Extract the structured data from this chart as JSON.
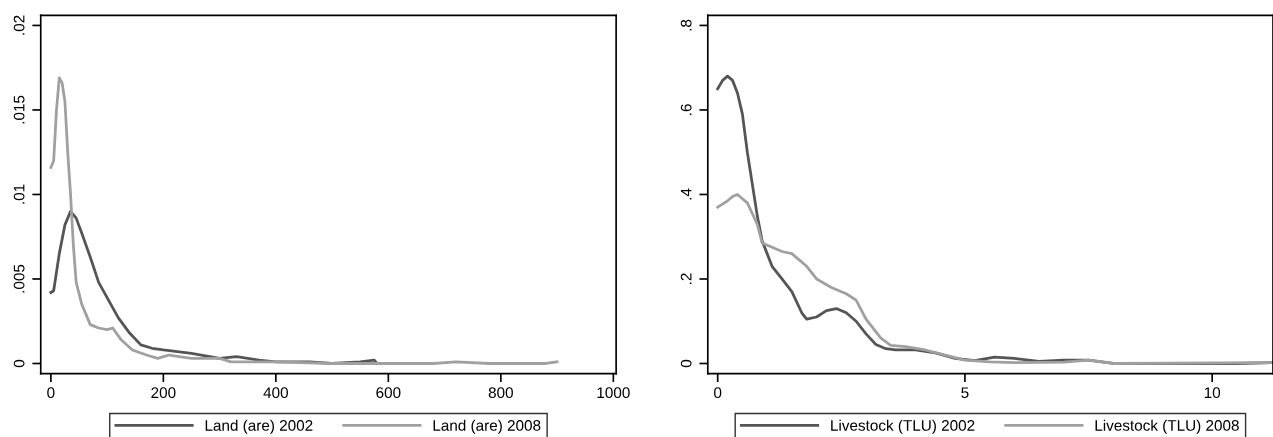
{
  "chart_data": [
    {
      "type": "line",
      "legend": "bottom",
      "grid": false,
      "xlim": [
        -18,
        1005
      ],
      "ylim": [
        -0.0006,
        0.0206
      ],
      "xticks": [
        0,
        200,
        400,
        600,
        800,
        1000
      ],
      "yticks": [
        {
          "value": 0,
          "label": "0"
        },
        {
          "value": 0.005,
          "label": ".005"
        },
        {
          "value": 0.01,
          "label": ".01"
        },
        {
          "value": 0.015,
          "label": ".015"
        },
        {
          "value": 0.02,
          "label": ".02"
        }
      ],
      "series": [
        {
          "name": "Land (are) 2002",
          "color": "#555555",
          "x": [
            0,
            5,
            15,
            25,
            35,
            45,
            55,
            70,
            85,
            100,
            120,
            140,
            160,
            180,
            200,
            250,
            300,
            330,
            370,
            400,
            460,
            500,
            550,
            575,
            580
          ],
          "values": [
            0.0042,
            0.0043,
            0.0065,
            0.0082,
            0.009,
            0.0086,
            0.0077,
            0.0063,
            0.0048,
            0.0039,
            0.0027,
            0.0018,
            0.0011,
            0.0009,
            0.0008,
            0.0006,
            0.0003,
            0.0004,
            0.0002,
            0.0001,
            0.0001,
            0.0,
            0.0001,
            0.0002,
            0.0
          ]
        },
        {
          "name": "Land (are) 2008",
          "color": "#a0a0a0",
          "x": [
            0,
            5,
            10,
            15,
            20,
            25,
            30,
            35,
            40,
            45,
            55,
            70,
            85,
            100,
            110,
            125,
            145,
            170,
            190,
            210,
            250,
            300,
            320,
            400,
            500,
            680,
            720,
            780,
            880,
            900
          ],
          "values": [
            0.0116,
            0.012,
            0.015,
            0.0169,
            0.0166,
            0.0155,
            0.0125,
            0.01,
            0.007,
            0.0048,
            0.0035,
            0.0023,
            0.0021,
            0.002,
            0.0021,
            0.0014,
            0.0008,
            0.0005,
            0.0003,
            0.0005,
            0.0003,
            0.0003,
            0.0001,
            0.0001,
            0.0,
            0.0,
            0.0001,
            0.0,
            0.0,
            0.0001
          ]
        }
      ]
    },
    {
      "type": "line",
      "legend": "bottom",
      "grid": false,
      "xlim": [
        -0.2,
        11.23
      ],
      "ylim": [
        -0.024,
        0.824
      ],
      "xticks": [
        0,
        5,
        10
      ],
      "yticks": [
        {
          "value": 0,
          "label": "0"
        },
        {
          "value": 0.2,
          "label": ".2"
        },
        {
          "value": 0.4,
          "label": ".4"
        },
        {
          "value": 0.6,
          "label": ".6"
        },
        {
          "value": 0.8,
          "label": ".8"
        }
      ],
      "series": [
        {
          "name": "Livestock (TLU) 2002",
          "color": "#555555",
          "x": [
            0,
            0.1,
            0.2,
            0.3,
            0.4,
            0.5,
            0.6,
            0.8,
            0.9,
            1.0,
            1.1,
            1.3,
            1.5,
            1.7,
            1.8,
            2.0,
            2.2,
            2.4,
            2.6,
            2.8,
            3.0,
            3.2,
            3.4,
            3.6,
            4.0,
            4.4,
            4.8,
            5.2,
            5.6,
            6.0,
            6.5,
            7.0,
            7.5,
            8.0,
            9.0,
            10.5,
            11.2
          ],
          "values": [
            0.65,
            0.67,
            0.68,
            0.67,
            0.64,
            0.59,
            0.5,
            0.35,
            0.29,
            0.26,
            0.23,
            0.2,
            0.17,
            0.12,
            0.105,
            0.11,
            0.125,
            0.13,
            0.12,
            0.1,
            0.07,
            0.045,
            0.035,
            0.032,
            0.032,
            0.025,
            0.012,
            0.007,
            0.015,
            0.012,
            0.005,
            0.008,
            0.008,
            0.0,
            0.0,
            0.0,
            0.002
          ]
        },
        {
          "name": "Livestock (TLU) 2008",
          "color": "#a0a0a0",
          "x": [
            0,
            0.2,
            0.3,
            0.4,
            0.5,
            0.6,
            0.8,
            0.9,
            1.1,
            1.3,
            1.5,
            1.6,
            1.8,
            2.0,
            2.3,
            2.6,
            2.8,
            3.0,
            3.3,
            3.5,
            3.8,
            4.2,
            4.6,
            5.0,
            5.5,
            6.0,
            7.0,
            7.5,
            8.0,
            11.2
          ],
          "values": [
            0.37,
            0.385,
            0.395,
            0.4,
            0.39,
            0.38,
            0.33,
            0.285,
            0.275,
            0.265,
            0.26,
            0.25,
            0.23,
            0.2,
            0.18,
            0.165,
            0.15,
            0.105,
            0.06,
            0.043,
            0.04,
            0.032,
            0.02,
            0.008,
            0.004,
            0.002,
            0.003,
            0.008,
            0.0,
            0.002
          ]
        }
      ]
    }
  ]
}
